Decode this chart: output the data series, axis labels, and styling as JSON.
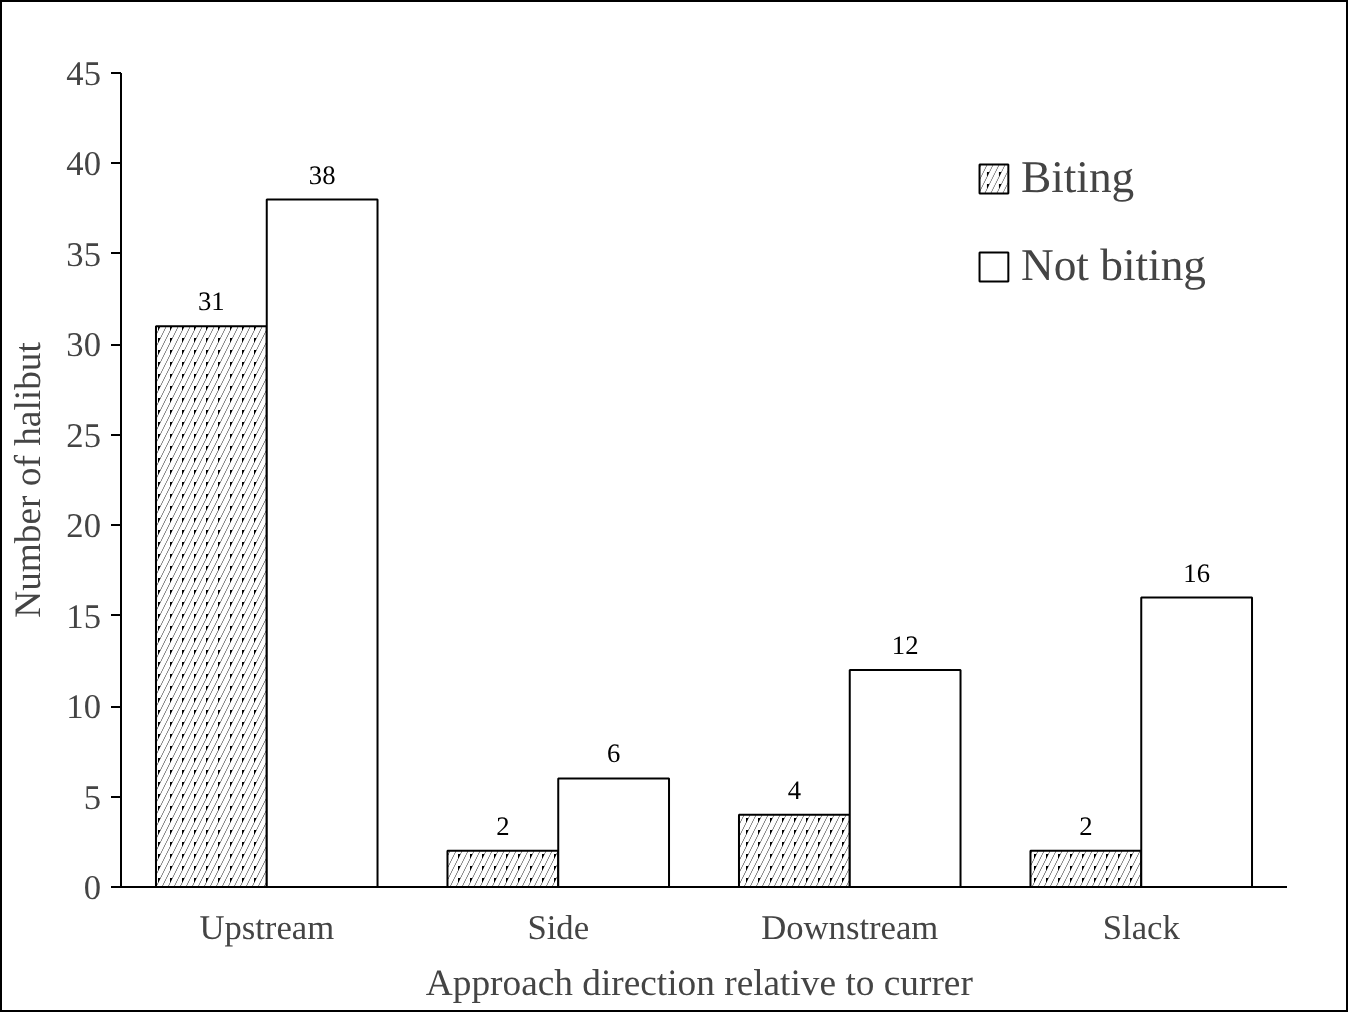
{
  "chart_data": {
    "type": "bar",
    "xlabel": "Approach direction  relative to currer",
    "ylabel": "Number of halibut",
    "categories": [
      "Upstream",
      "Side",
      "Downstream",
      "Slack"
    ],
    "series": [
      {
        "name": "Biting",
        "color": "#000000",
        "values": [
          31,
          2,
          4,
          2
        ]
      },
      {
        "name": "Not biting",
        "color": "#ffffff",
        "values": [
          38,
          6,
          12,
          16
        ]
      }
    ],
    "ylim": [
      0,
      45
    ],
    "yticks": [
      0,
      5,
      10,
      15,
      20,
      25,
      30,
      35,
      40,
      45
    ],
    "grid": false,
    "legend": "top right",
    "data_labels": true
  }
}
